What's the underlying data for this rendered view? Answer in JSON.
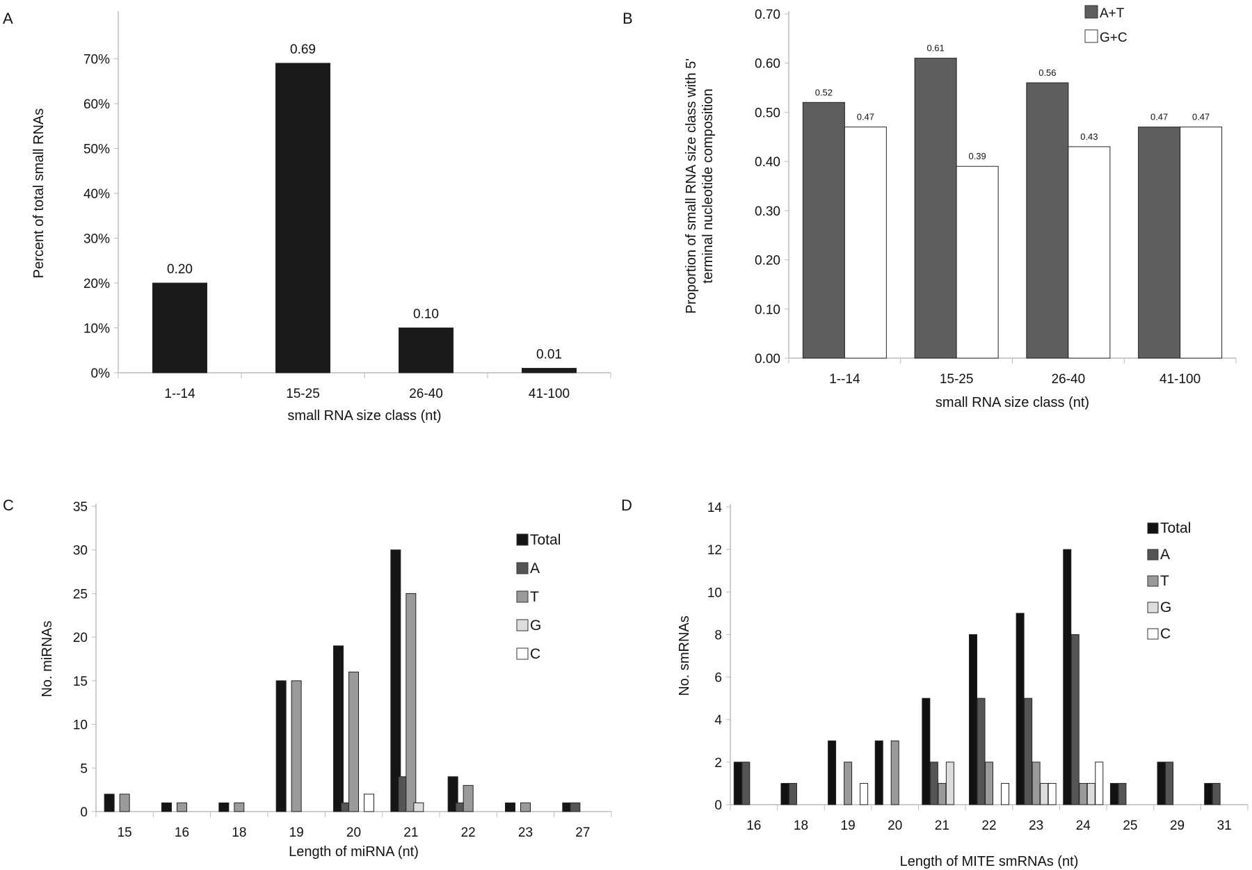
{
  "chart_data": [
    {
      "panel": "A",
      "type": "bar",
      "categories": [
        "1--14",
        "15-25",
        "26-40",
        "41-100"
      ],
      "series": [
        {
          "name": "Percent",
          "values": [
            0.2,
            0.69,
            0.1,
            0.01
          ],
          "color": "#1a1a1a"
        }
      ],
      "data_labels": [
        "0.20",
        "0.69",
        "0.10",
        "0.01"
      ],
      "xlabel": "small RNA size class (nt)",
      "ylabel": "Percent of total small RNAs",
      "ylim": [
        0,
        0.8
      ],
      "yticks": [
        0,
        0.1,
        0.2,
        0.3,
        0.4,
        0.5,
        0.6,
        0.7
      ],
      "ytick_labels": [
        "0%",
        "10%",
        "20%",
        "30%",
        "40%",
        "50%",
        "60%",
        "70%"
      ],
      "legend": null
    },
    {
      "panel": "B",
      "type": "bar",
      "categories": [
        "1--14",
        "15-25",
        "26-40",
        "41-100"
      ],
      "series": [
        {
          "name": "A+T",
          "values": [
            0.52,
            0.61,
            0.56,
            0.47
          ],
          "color": "#5e5e5e",
          "labels": [
            "0.52",
            "0.61",
            "0.56",
            "0.47"
          ]
        },
        {
          "name": "G+C",
          "values": [
            0.47,
            0.39,
            0.43,
            0.47
          ],
          "color": "#ffffff",
          "labels": [
            "0.47",
            "0.39",
            "0.43",
            "0.47"
          ]
        }
      ],
      "xlabel": "small RNA size class (nt)",
      "ylabel": [
        "Proportion of small RNA size class with 5'",
        "terminal nucleotide composition"
      ],
      "ylim": [
        0,
        0.7
      ],
      "yticks": [
        0,
        0.1,
        0.2,
        0.3,
        0.4,
        0.5,
        0.6,
        0.7
      ],
      "ytick_labels": [
        "0.00",
        "0.10",
        "0.20",
        "0.30",
        "0.40",
        "0.50",
        "0.60",
        "0.70"
      ],
      "legend": "top-right"
    },
    {
      "panel": "C",
      "type": "bar",
      "categories": [
        "15",
        "16",
        "18",
        "19",
        "20",
        "21",
        "22",
        "23",
        "27"
      ],
      "series": [
        {
          "name": "Total",
          "values": [
            2,
            1,
            1,
            15,
            19,
            30,
            4,
            1,
            1
          ],
          "color": "#151515"
        },
        {
          "name": "A",
          "values": [
            0,
            0,
            0,
            0,
            1,
            4,
            1,
            0,
            1
          ],
          "color": "#555555"
        },
        {
          "name": "T",
          "values": [
            2,
            1,
            1,
            15,
            16,
            25,
            3,
            1,
            0
          ],
          "color": "#9a9a9a"
        },
        {
          "name": "G",
          "values": [
            0,
            0,
            0,
            0,
            0,
            1,
            0,
            0,
            0
          ],
          "color": "#dddddd"
        },
        {
          "name": "C",
          "values": [
            0,
            0,
            0,
            0,
            2,
            0,
            0,
            0,
            0
          ],
          "color": "#ffffff"
        }
      ],
      "xlabel": "Length of miRNA (nt)",
      "ylabel": "No. miRNAs",
      "ylim": [
        0,
        35
      ],
      "yticks": [
        0,
        5,
        10,
        15,
        20,
        25,
        30,
        35
      ],
      "ytick_labels": [
        "0",
        "5",
        "10",
        "15",
        "20",
        "25",
        "30",
        "35"
      ],
      "legend": "top-right"
    },
    {
      "panel": "D",
      "type": "bar",
      "categories": [
        "16",
        "18",
        "19",
        "20",
        "21",
        "22",
        "23",
        "24",
        "25",
        "29",
        "31"
      ],
      "series": [
        {
          "name": "Total",
          "values": [
            2,
            1,
            3,
            3,
            5,
            8,
            9,
            12,
            1,
            2,
            1
          ],
          "color": "#111111"
        },
        {
          "name": "A",
          "values": [
            2,
            1,
            0,
            0,
            2,
            5,
            5,
            8,
            1,
            2,
            1
          ],
          "color": "#555555"
        },
        {
          "name": "T",
          "values": [
            0,
            0,
            2,
            3,
            1,
            2,
            2,
            1,
            0,
            0,
            0
          ],
          "color": "#9a9a9a"
        },
        {
          "name": "G",
          "values": [
            0,
            0,
            0,
            0,
            2,
            0,
            1,
            1,
            0,
            0,
            0
          ],
          "color": "#dddddd"
        },
        {
          "name": "C",
          "values": [
            0,
            0,
            1,
            0,
            0,
            1,
            1,
            2,
            0,
            0,
            0
          ],
          "color": "#ffffff"
        }
      ],
      "xlabel": "Length of MITE smRNAs (nt)",
      "ylabel": "No. smRNAs",
      "ylim": [
        0,
        14
      ],
      "yticks": [
        0,
        2,
        4,
        6,
        8,
        10,
        12,
        14
      ],
      "ytick_labels": [
        "0",
        "2",
        "4",
        "6",
        "8",
        "10",
        "12",
        "14"
      ],
      "legend": "top-right"
    }
  ]
}
